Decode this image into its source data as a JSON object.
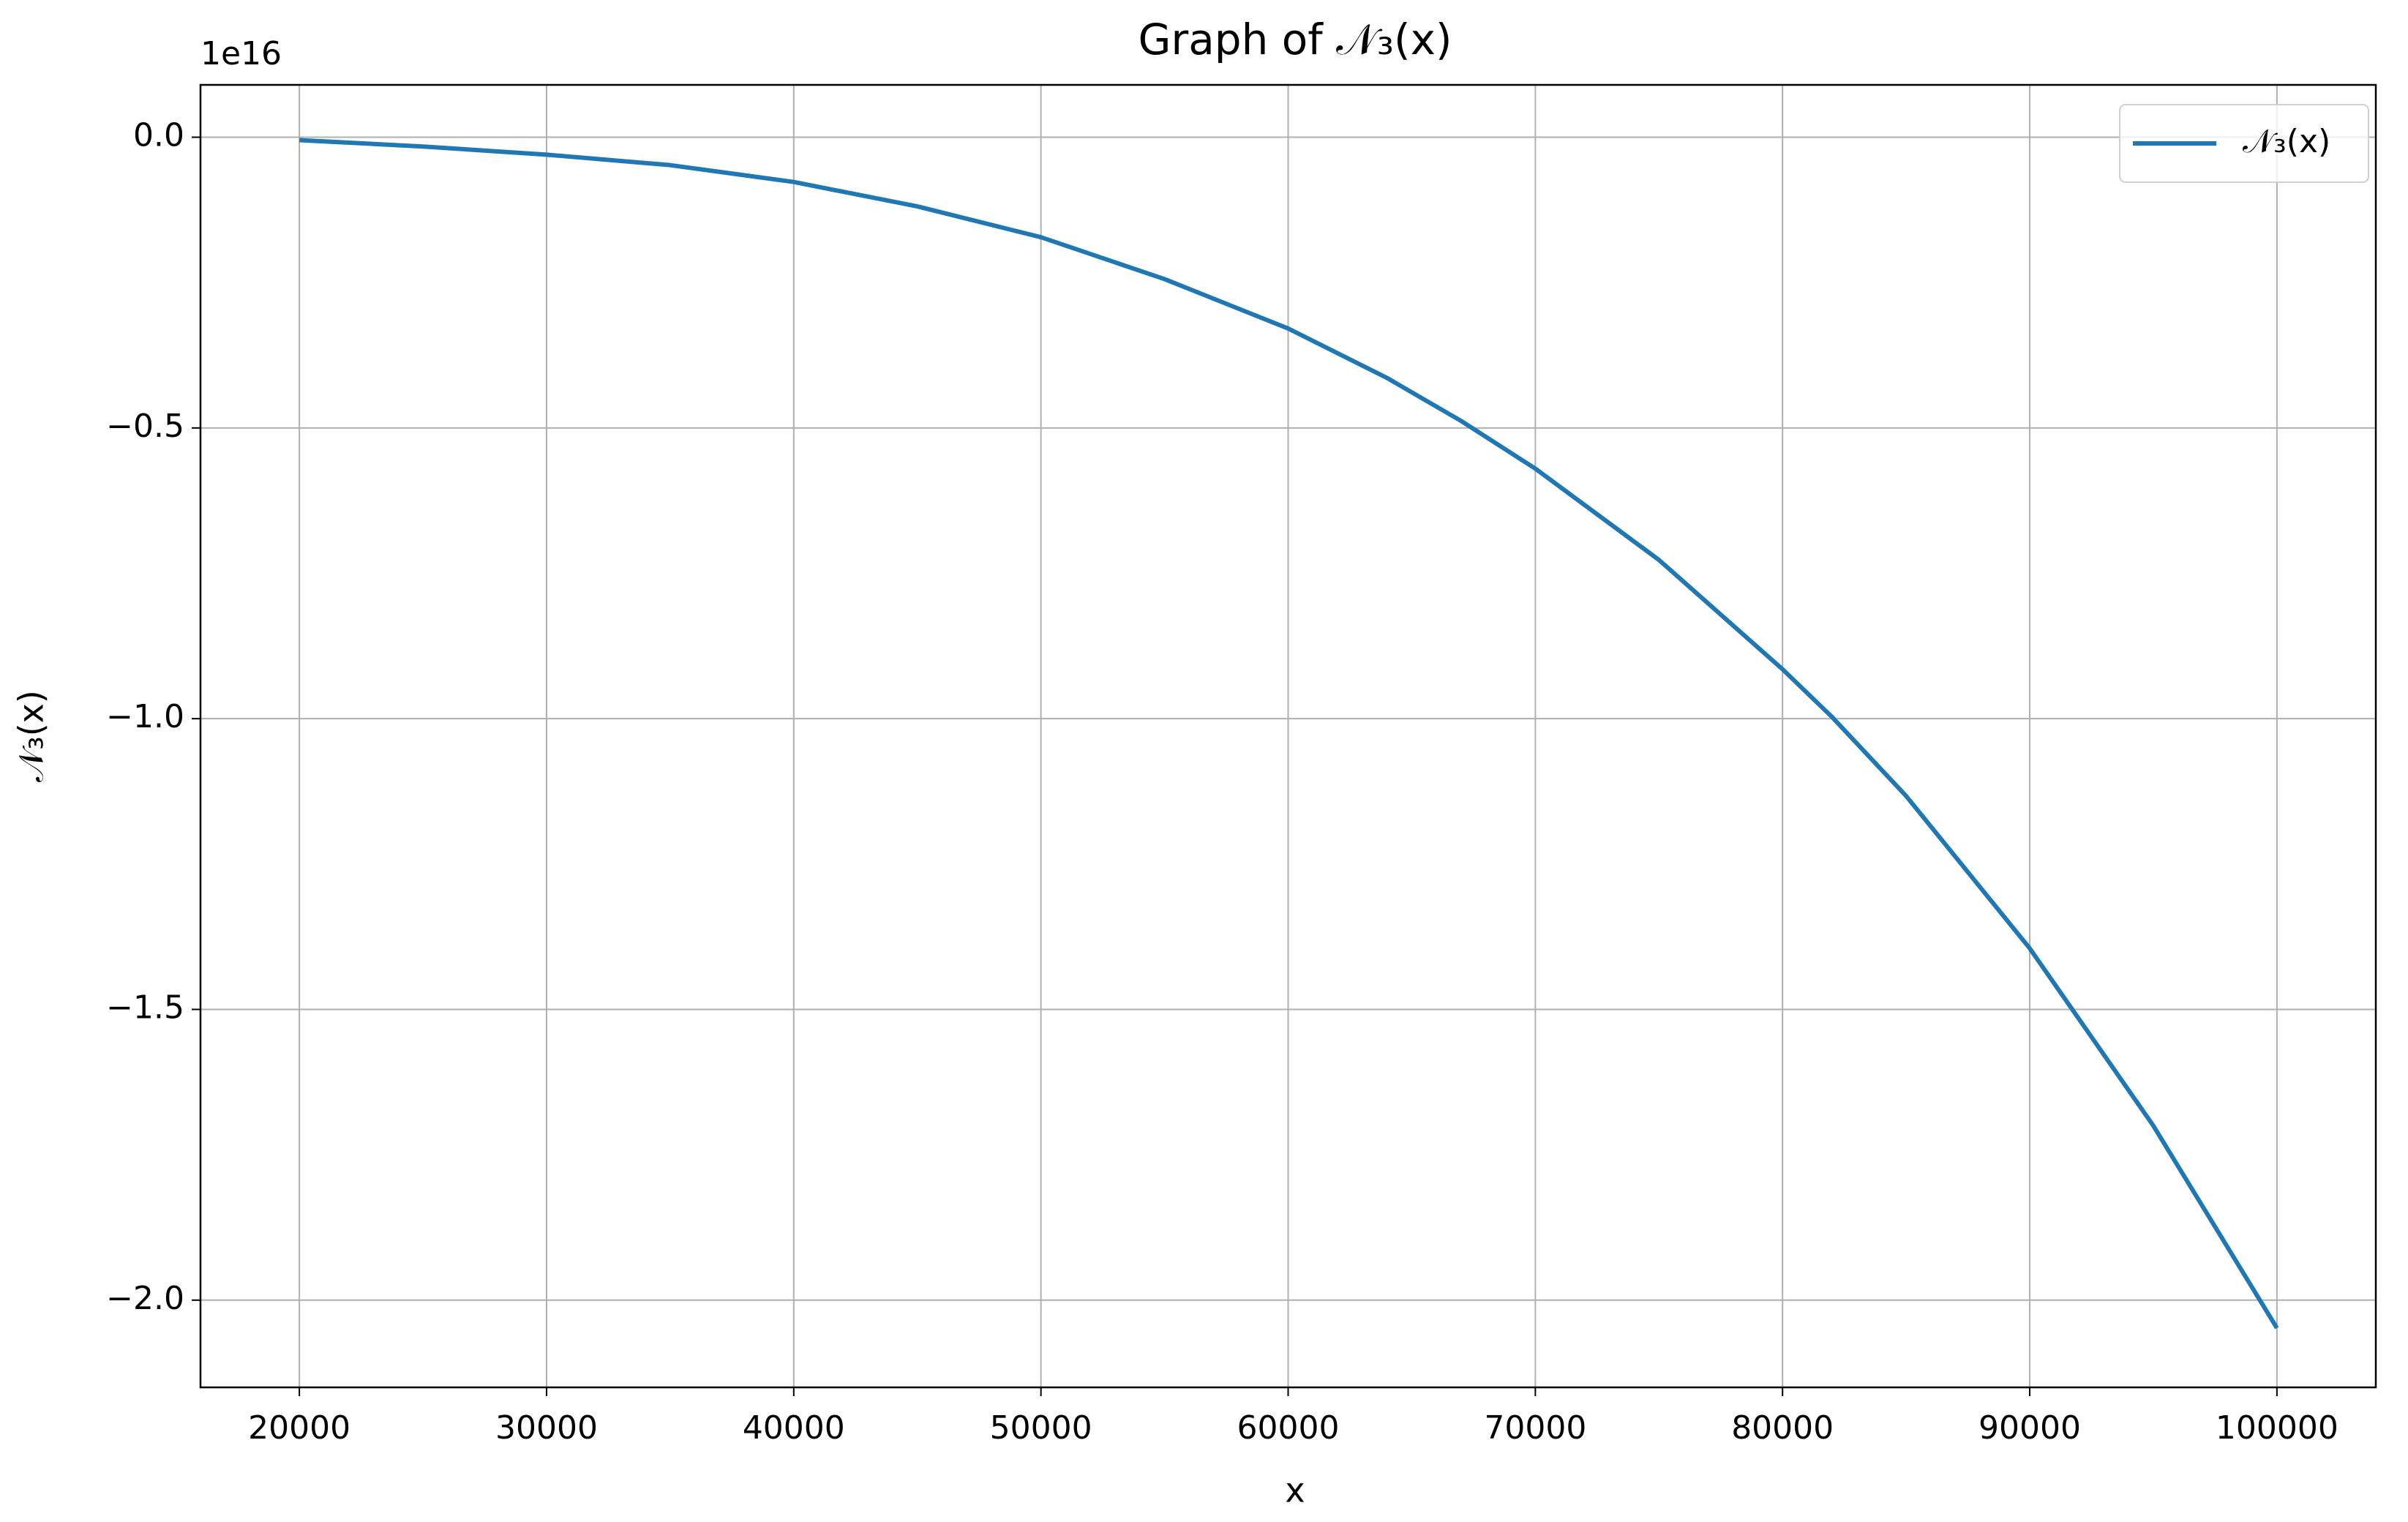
{
  "chart_data": {
    "type": "line",
    "title": "Graph of 𝒩₃(x)",
    "x_label": "x",
    "y_label": "𝒩₃(x)",
    "y_offset_label": "1e16",
    "x": [
      20000,
      25000,
      30000,
      35000,
      40000,
      45000,
      50000,
      55000,
      60000,
      64000,
      67000,
      70000,
      75000,
      80000,
      82000,
      85000,
      90000,
      95000,
      100000
    ],
    "series": [
      {
        "name": "𝒩₃(x)",
        "color": "#1f77b4",
        "values": [
          -0.005,
          -0.016,
          -0.03,
          -0.048,
          -0.077,
          -0.119,
          -0.172,
          -0.244,
          -0.329,
          -0.414,
          -0.488,
          -0.57,
          -0.727,
          -0.915,
          -0.997,
          -1.133,
          -1.395,
          -1.7,
          -2.048
        ]
      }
    ],
    "xlim": [
      16000,
      104000
    ],
    "ylim": [
      -2.15,
      0.09
    ],
    "xticks": [
      20000,
      30000,
      40000,
      50000,
      60000,
      70000,
      80000,
      90000,
      100000
    ],
    "yticks": [
      {
        "value": 0,
        "label": "0.0"
      },
      {
        "value": -0.5,
        "label": "−0.5"
      },
      {
        "value": -1,
        "label": "−1.0"
      },
      {
        "value": -1.5,
        "label": "−1.5"
      },
      {
        "value": -2,
        "label": "−2.0"
      }
    ],
    "grid": true,
    "legend": "upper right"
  }
}
